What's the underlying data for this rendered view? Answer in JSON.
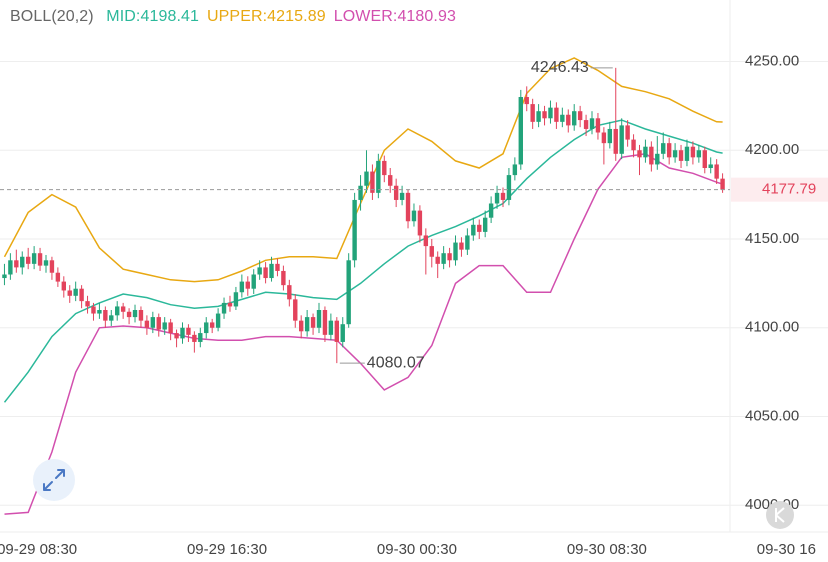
{
  "chart_data": {
    "type": "candlestick",
    "title": "BOLL(20,2)",
    "up_color": "#22a37a",
    "down_color": "#e3435c",
    "grid": true,
    "xlim": [
      -0.75,
      122.25
    ],
    "xticks": [
      {
        "value": 6,
        "label": "09-29 08:30"
      },
      {
        "value": 38,
        "label": "09-29 16:30"
      },
      {
        "value": 70,
        "label": "09-30 00:30"
      },
      {
        "value": 102,
        "label": "09-30 08:30"
      },
      {
        "value": 134,
        "label": "09-30 16"
      }
    ],
    "ylim": [
      3990,
      4270
    ],
    "yticks": [
      {
        "value": 4000,
        "label": "4000.00"
      },
      {
        "value": 4050,
        "label": "4050.00"
      },
      {
        "value": 4100,
        "label": "4100.00"
      },
      {
        "value": 4150,
        "label": "4150.00"
      },
      {
        "value": 4200,
        "label": "4200.00"
      },
      {
        "value": 4250,
        "label": "4250.00"
      }
    ],
    "candles": [
      [
        4128,
        4136,
        4124,
        4130
      ],
      [
        4130,
        4142,
        4127,
        4138
      ],
      [
        4138,
        4144,
        4131,
        4134
      ],
      [
        4134,
        4143,
        4130,
        4140
      ],
      [
        4140,
        4145,
        4133,
        4136
      ],
      [
        4136,
        4146,
        4133,
        4142
      ],
      [
        4142,
        4145,
        4132,
        4135
      ],
      [
        4135,
        4141,
        4131,
        4138
      ],
      [
        4138,
        4140,
        4127,
        4131
      ],
      [
        4131,
        4134,
        4123,
        4126
      ],
      [
        4126,
        4129,
        4117,
        4121
      ],
      [
        4121,
        4124,
        4114,
        4118
      ],
      [
        4118,
        4126,
        4115,
        4122
      ],
      [
        4122,
        4124,
        4111,
        4115
      ],
      [
        4115,
        4118,
        4108,
        4112
      ],
      [
        4112,
        4114,
        4104,
        4108
      ],
      [
        4108,
        4114,
        4105,
        4110
      ],
      [
        4110,
        4112,
        4100,
        4104
      ],
      [
        4104,
        4110,
        4101,
        4107
      ],
      [
        4107,
        4115,
        4104,
        4112
      ],
      [
        4112,
        4114,
        4105,
        4109
      ],
      [
        4109,
        4111,
        4102,
        4106
      ],
      [
        4106,
        4113,
        4103,
        4110
      ],
      [
        4110,
        4112,
        4100,
        4104
      ],
      [
        4104,
        4107,
        4096,
        4100
      ],
      [
        4100,
        4109,
        4097,
        4106
      ],
      [
        4106,
        4108,
        4095,
        4099
      ],
      [
        4099,
        4106,
        4096,
        4103
      ],
      [
        4103,
        4105,
        4093,
        4097
      ],
      [
        4097,
        4099,
        4089,
        4094
      ],
      [
        4094,
        4103,
        4091,
        4100
      ],
      [
        4100,
        4102,
        4092,
        4096
      ],
      [
        4096,
        4098,
        4086,
        4092
      ],
      [
        4092,
        4100,
        4089,
        4097
      ],
      [
        4097,
        4106,
        4094,
        4103
      ],
      [
        4103,
        4105,
        4097,
        4100
      ],
      [
        4100,
        4111,
        4098,
        4108
      ],
      [
        4108,
        4117,
        4105,
        4114
      ],
      [
        4114,
        4118,
        4109,
        4112
      ],
      [
        4112,
        4123,
        4110,
        4120
      ],
      [
        4120,
        4130,
        4117,
        4126
      ],
      [
        4126,
        4129,
        4118,
        4122
      ],
      [
        4122,
        4133,
        4119,
        4130
      ],
      [
        4130,
        4138,
        4127,
        4134
      ],
      [
        4134,
        4137,
        4125,
        4128
      ],
      [
        4128,
        4140,
        4126,
        4136
      ],
      [
        4136,
        4139,
        4129,
        4132
      ],
      [
        4132,
        4135,
        4121,
        4124
      ],
      [
        4124,
        4127,
        4112,
        4116
      ],
      [
        4116,
        4119,
        4100,
        4104
      ],
      [
        4104,
        4107,
        4094,
        4098
      ],
      [
        4098,
        4110,
        4095,
        4106
      ],
      [
        4106,
        4108,
        4096,
        4100
      ],
      [
        4100,
        4114,
        4097,
        4110
      ],
      [
        4110,
        4112,
        4092,
        4096
      ],
      [
        4096,
        4108,
        4093,
        4104
      ],
      [
        4104,
        4106,
        4080.07,
        4092
      ],
      [
        4092,
        4106,
        4089,
        4102
      ],
      [
        4102,
        4142,
        4100,
        4138
      ],
      [
        4138,
        4176,
        4134,
        4172
      ],
      [
        4172,
        4186,
        4166,
        4180
      ],
      [
        4180,
        4200,
        4176,
        4188
      ],
      [
        4188,
        4192,
        4172,
        4176
      ],
      [
        4176,
        4198,
        4173,
        4194
      ],
      [
        4194,
        4197,
        4182,
        4186
      ],
      [
        4186,
        4190,
        4176,
        4180
      ],
      [
        4180,
        4184,
        4168,
        4172
      ],
      [
        4172,
        4180,
        4169,
        4176
      ],
      [
        4176,
        4178,
        4156,
        4160
      ],
      [
        4160,
        4170,
        4157,
        4166
      ],
      [
        4166,
        4169,
        4148,
        4152
      ],
      [
        4152,
        4156,
        4130,
        4146
      ],
      [
        4146,
        4150,
        4134,
        4140
      ],
      [
        4140,
        4143,
        4128,
        4136
      ],
      [
        4136,
        4146,
        4133,
        4142
      ],
      [
        4142,
        4145,
        4134,
        4138
      ],
      [
        4138,
        4152,
        4135,
        4148
      ],
      [
        4148,
        4151,
        4140,
        4144
      ],
      [
        4144,
        4156,
        4141,
        4152
      ],
      [
        4152,
        4162,
        4149,
        4158
      ],
      [
        4158,
        4161,
        4150,
        4154
      ],
      [
        4154,
        4166,
        4151,
        4162
      ],
      [
        4162,
        4174,
        4159,
        4170
      ],
      [
        4170,
        4180,
        4167,
        4176
      ],
      [
        4176,
        4179,
        4168,
        4172
      ],
      [
        4172,
        4190,
        4169,
        4186
      ],
      [
        4186,
        4196,
        4183,
        4192
      ],
      [
        4192,
        4234,
        4189,
        4230
      ],
      [
        4230,
        4236,
        4222,
        4226
      ],
      [
        4226,
        4229,
        4212,
        4216
      ],
      [
        4216,
        4226,
        4213,
        4222
      ],
      [
        4222,
        4225,
        4214,
        4218
      ],
      [
        4218,
        4228,
        4215,
        4224
      ],
      [
        4224,
        4227,
        4212,
        4216
      ],
      [
        4216,
        4224,
        4213,
        4220
      ],
      [
        4220,
        4223,
        4210,
        4214
      ],
      [
        4214,
        4226,
        4211,
        4222
      ],
      [
        4222,
        4225,
        4213,
        4217
      ],
      [
        4217,
        4220,
        4208,
        4212
      ],
      [
        4212,
        4222,
        4209,
        4218
      ],
      [
        4218,
        4221,
        4206,
        4210
      ],
      [
        4210,
        4213,
        4192,
        4204
      ],
      [
        4204,
        4216,
        4201,
        4212
      ],
      [
        4212,
        4246.43,
        4194,
        4198
      ],
      [
        4198,
        4218,
        4195,
        4214
      ],
      [
        4214,
        4217,
        4202,
        4206
      ],
      [
        4206,
        4209,
        4196,
        4200
      ],
      [
        4200,
        4203,
        4186,
        4196
      ],
      [
        4196,
        4206,
        4193,
        4202
      ],
      [
        4202,
        4205,
        4188,
        4192
      ],
      [
        4192,
        4208,
        4189,
        4198
      ],
      [
        4198,
        4210,
        4195,
        4204
      ],
      [
        4204,
        4207,
        4192,
        4196
      ],
      [
        4196,
        4204,
        4193,
        4200
      ],
      [
        4200,
        4203,
        4190,
        4194
      ],
      [
        4194,
        4206,
        4191,
        4202
      ],
      [
        4202,
        4205,
        4192,
        4196
      ],
      [
        4196,
        4203,
        4193,
        4200
      ],
      [
        4200,
        4202,
        4187,
        4190
      ],
      [
        4190,
        4196,
        4187,
        4192
      ],
      [
        4192,
        4195,
        4181,
        4184
      ],
      [
        4184,
        4187,
        4176,
        4177.79
      ]
    ],
    "series": [
      {
        "name": "MID",
        "color": "#2bb89a",
        "x": [
          0,
          4,
          8,
          12,
          16,
          20,
          24,
          28,
          32,
          36,
          40,
          44,
          48,
          52,
          56,
          60,
          64,
          68,
          72,
          76,
          80,
          84,
          88,
          92,
          96,
          100,
          104,
          108,
          112,
          116,
          120,
          121
        ],
        "values": [
          4058,
          4075,
          4095,
          4108,
          4114,
          4119,
          4117,
          4113,
          4111,
          4112,
          4116,
          4120,
          4119,
          4117,
          4116,
          4125,
          4136,
          4146,
          4152,
          4157,
          4163,
          4170,
          4184,
          4196,
          4206,
          4214,
          4217,
          4212,
          4208,
          4204,
          4199,
          4198.41
        ]
      },
      {
        "name": "UPPER",
        "color": "#e8a812",
        "x": [
          0,
          4,
          8,
          12,
          16,
          20,
          24,
          28,
          32,
          36,
          40,
          44,
          48,
          52,
          56,
          60,
          64,
          68,
          72,
          76,
          80,
          84,
          88,
          92,
          96,
          100,
          104,
          108,
          112,
          116,
          120,
          121
        ],
        "values": [
          4140,
          4165,
          4175,
          4168,
          4145,
          4133,
          4130,
          4127,
          4126,
          4127,
          4132,
          4138,
          4140,
          4140,
          4139,
          4170,
          4200,
          4212,
          4205,
          4194,
          4190,
          4198,
          4232,
          4246,
          4252,
          4245,
          4236,
          4233,
          4229,
          4222,
          4216,
          4215.89
        ]
      },
      {
        "name": "LOWER",
        "color": "#d24fae",
        "x": [
          0,
          4,
          8,
          12,
          16,
          20,
          24,
          28,
          32,
          36,
          40,
          44,
          48,
          52,
          56,
          60,
          64,
          68,
          72,
          76,
          80,
          84,
          88,
          92,
          96,
          100,
          104,
          108,
          112,
          116,
          120,
          121
        ],
        "values": [
          3995,
          3996,
          4030,
          4075,
          4100,
          4101,
          4100,
          4097,
          4094,
          4093,
          4093,
          4095,
          4095,
          4094,
          4093,
          4080,
          4065,
          4072,
          4090,
          4125,
          4135,
          4135,
          4120,
          4120,
          4150,
          4178,
          4196,
          4198,
          4190,
          4187,
          4182,
          4180.93
        ]
      }
    ]
  }
}
